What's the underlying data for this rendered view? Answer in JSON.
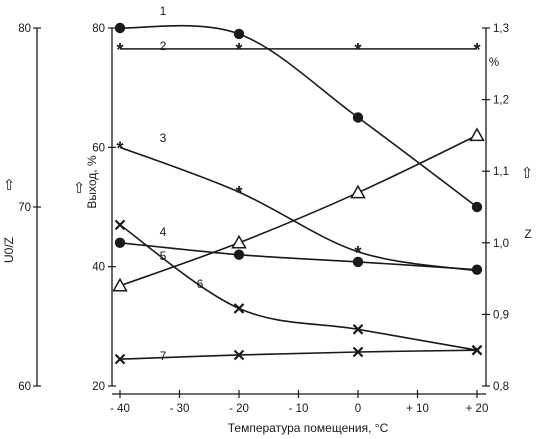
{
  "chart_data": {
    "type": "line",
    "title": "",
    "xlabel": "Температура помещения, °С",
    "x_ticks": [
      "- 40",
      "- 30",
      "- 20",
      "- 10",
      "0",
      "+ 10",
      "+ 20"
    ],
    "x_tick_values": [
      -40,
      -30,
      -20,
      -10,
      0,
      10,
      20
    ],
    "xlim": [
      -40,
      20
    ],
    "axes": {
      "left_outer": {
        "label": "U0/Z",
        "arrow": "⇧",
        "ticks": [
          "80",
          "70",
          "60"
        ],
        "tick_values": [
          80,
          70,
          60
        ],
        "range": [
          60,
          80
        ]
      },
      "left_inner": {
        "label": "Выход, %",
        "arrow": "⇧",
        "ticks": [
          "80",
          "60",
          "40",
          "20"
        ],
        "tick_values": [
          80,
          60,
          40,
          20
        ],
        "range": [
          20,
          80
        ]
      },
      "right": {
        "label": "Z",
        "arrow": "⇧",
        "ticks": [
          "1,3",
          "1,2",
          "1,1",
          "1,0",
          "0,9",
          "0,8"
        ],
        "tick_values": [
          1.3,
          1.2,
          1.1,
          1.0,
          0.9,
          0.8
        ],
        "range": [
          0.8,
          1.3
        ],
        "unit_label": "%"
      }
    },
    "series": [
      {
        "label": "1",
        "marker": "circle",
        "axis": "left_inner",
        "x": [
          -40,
          -20,
          0,
          20
        ],
        "y": [
          80,
          79,
          65,
          50
        ]
      },
      {
        "label": "2",
        "marker": "asterisk",
        "axis": "left_inner",
        "x": [
          -40,
          -20,
          0,
          20
        ],
        "y": [
          76.5,
          76.5,
          76.5,
          76.5
        ]
      },
      {
        "label": "3",
        "marker": "asterisk",
        "axis": "left_inner",
        "x": [
          -40,
          -20,
          0,
          20
        ],
        "y": [
          60,
          52.5,
          42.5,
          39.3
        ]
      },
      {
        "label": "4",
        "marker": "circle",
        "axis": "left_inner",
        "x": [
          -40,
          -20,
          0,
          20
        ],
        "y": [
          44,
          42,
          40.8,
          39.5
        ]
      },
      {
        "label": "5",
        "marker": "triangle",
        "axis": "right",
        "x": [
          -40,
          -20,
          0,
          20
        ],
        "y": [
          0.94,
          1.0,
          1.07,
          1.15
        ]
      },
      {
        "label": "6",
        "marker": "x",
        "axis": "left_inner",
        "x": [
          -40,
          -20,
          0,
          20
        ],
        "y": [
          47,
          33,
          29.5,
          26
        ]
      },
      {
        "label": "7",
        "marker": "x",
        "axis": "left_inner",
        "x": [
          -40,
          -20,
          0,
          20
        ],
        "y": [
          24.5,
          25.2,
          25.7,
          26
        ]
      }
    ]
  }
}
